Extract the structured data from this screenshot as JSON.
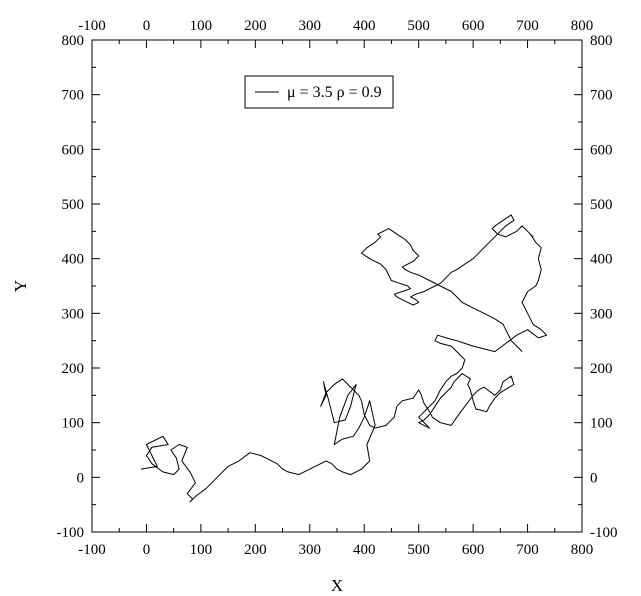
{
  "chart_data": {
    "type": "line",
    "title": "",
    "xlabel": "X",
    "ylabel": "Y",
    "xlim": [
      -100,
      800
    ],
    "ylim": [
      -100,
      800
    ],
    "x_ticks": [
      -100,
      0,
      100,
      200,
      300,
      400,
      500,
      600,
      700,
      800
    ],
    "x_tick_labels": [
      "-100",
      "0",
      "100",
      "200",
      "300",
      "400",
      "500",
      "600",
      "700",
      "800"
    ],
    "y_ticks": [
      -100,
      0,
      100,
      200,
      300,
      400,
      500,
      600,
      700,
      800
    ],
    "y_tick_labels": [
      "-100",
      "0",
      "100",
      "200",
      "300",
      "400",
      "500",
      "600",
      "700",
      "800"
    ],
    "mirror_ticks": true,
    "grid": false,
    "legend": {
      "position": "top-center",
      "entries": [
        "μ = 3.5 ρ = 0.9"
      ]
    },
    "series": [
      {
        "name": "μ = 3.5 ρ = 0.9",
        "color": "#000000",
        "x": [
          -10,
          20,
          0,
          30,
          40,
          10,
          0,
          10,
          30,
          50,
          60,
          55,
          45,
          60,
          75,
          65,
          80,
          90,
          75,
          85,
          80,
          90,
          110,
          130,
          150,
          170,
          190,
          210,
          220,
          240,
          250,
          260,
          280,
          300,
          320,
          330,
          340,
          350,
          360,
          375,
          385,
          395,
          410,
          405,
          420,
          410,
          400,
          390,
          380,
          360,
          345,
          355,
          370,
          385,
          375,
          365,
          345,
          335,
          325,
          330,
          320,
          330,
          345,
          360,
          375,
          390,
          395,
          400,
          410,
          420,
          440,
          455,
          460,
          470,
          490,
          500,
          505,
          510,
          520,
          525,
          540,
          560,
          570,
          585,
          600,
          610,
          620,
          640,
          650,
          655,
          670,
          675,
          650,
          640,
          630,
          625,
          605,
          600,
          595,
          590,
          595,
          580,
          565,
          560,
          550,
          540,
          530,
          520,
          510,
          500,
          510,
          520,
          500,
          515,
          530,
          540,
          550,
          560,
          570,
          580,
          585,
          570,
          560,
          540,
          530,
          535,
          550,
          570,
          585,
          600,
          620,
          640,
          660,
          680,
          700,
          720,
          735,
          725,
          710,
          700,
          690,
          700,
          715,
          720,
          725,
          720,
          725,
          715,
          705,
          710,
          700,
          690,
          680,
          660,
          645,
          635,
          640,
          655,
          670,
          675,
          660,
          650,
          640,
          630,
          620,
          610,
          600,
          585,
          570,
          560,
          550,
          540,
          530,
          520,
          510,
          495,
          485,
          495,
          500,
          490,
          480,
          470,
          460,
          455,
          470,
          485,
          480,
          465,
          450,
          445,
          440,
          430,
          420,
          410,
          395,
          405,
          420,
          430,
          425,
          435,
          445,
          460,
          475,
          485,
          490,
          500,
          490,
          480,
          470,
          475,
          485,
          500,
          520,
          540,
          560,
          570,
          580,
          600,
          620,
          640,
          655,
          660,
          665,
          670,
          680,
          690
        ],
        "y": [
          15,
          20,
          60,
          75,
          60,
          55,
          40,
          25,
          10,
          5,
          15,
          35,
          50,
          60,
          55,
          30,
          10,
          -10,
          -30,
          -40,
          -45,
          -35,
          -20,
          0,
          20,
          30,
          45,
          40,
          35,
          25,
          15,
          10,
          5,
          15,
          25,
          30,
          25,
          15,
          10,
          5,
          10,
          15,
          30,
          60,
          95,
          140,
          110,
          90,
          75,
          70,
          60,
          110,
          150,
          170,
          130,
          105,
          100,
          140,
          175,
          150,
          130,
          155,
          170,
          180,
          165,
          150,
          140,
          115,
          95,
          90,
          95,
          110,
          130,
          140,
          145,
          160,
          150,
          135,
          120,
          110,
          100,
          95,
          110,
          130,
          150,
          160,
          165,
          150,
          160,
          175,
          185,
          170,
          155,
          145,
          130,
          120,
          125,
          140,
          160,
          170,
          180,
          190,
          175,
          165,
          155,
          145,
          130,
          115,
          105,
          100,
          95,
          90,
          110,
          125,
          140,
          160,
          175,
          185,
          190,
          200,
          215,
          230,
          240,
          245,
          250,
          260,
          255,
          250,
          245,
          240,
          235,
          230,
          245,
          260,
          270,
          255,
          260,
          270,
          280,
          300,
          320,
          340,
          350,
          360,
          380,
          400,
          420,
          430,
          445,
          440,
          450,
          460,
          450,
          440,
          445,
          455,
          460,
          470,
          480,
          470,
          460,
          450,
          440,
          430,
          420,
          410,
          400,
          390,
          380,
          375,
          365,
          355,
          350,
          345,
          340,
          335,
          330,
          325,
          320,
          315,
          320,
          325,
          330,
          335,
          340,
          345,
          350,
          355,
          360,
          370,
          380,
          390,
          395,
          400,
          410,
          420,
          430,
          440,
          445,
          450,
          455,
          445,
          435,
          425,
          415,
          405,
          395,
          390,
          385,
          380,
          375,
          370,
          360,
          350,
          340,
          330,
          320,
          310,
          300,
          290,
          280,
          270,
          260,
          250,
          240,
          230
        ]
      }
    ]
  }
}
